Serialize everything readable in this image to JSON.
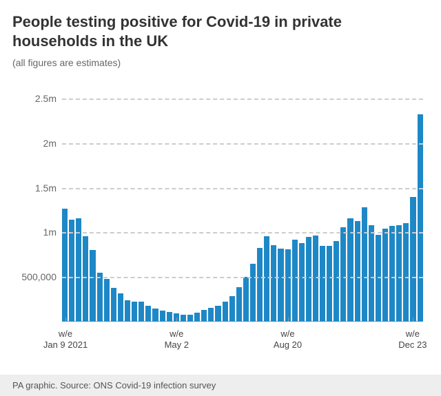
{
  "title": "People testing positive for Covid-19 in private households in the UK",
  "subtitle": "(all figures are estimates)",
  "footer": "PA graphic. Source: ONS Covid-19 infection survey",
  "chart": {
    "type": "bar",
    "y_max": 2700000,
    "y_min": 0,
    "y_ticks": [
      {
        "value": 500000,
        "label": "500,000"
      },
      {
        "value": 1000000,
        "label": "1m"
      },
      {
        "value": 1500000,
        "label": "1.5m"
      },
      {
        "value": 2000000,
        "label": "2m"
      },
      {
        "value": 2500000,
        "label": "2.5m"
      }
    ],
    "x_ticks": [
      {
        "index": 0,
        "line1": "w/e",
        "line2": "Jan 9 2021"
      },
      {
        "index": 16,
        "line1": "w/e",
        "line2": "May 2"
      },
      {
        "index": 32,
        "line1": "w/e",
        "line2": "Aug 20"
      },
      {
        "index": 50,
        "line1": "w/e",
        "line2": "Dec 23"
      }
    ],
    "bar_color": "#1e88c7",
    "grid_color": "#cccccc",
    "axis_color": "#999999",
    "text_color": "#666666",
    "background": "#ffffff",
    "title_fontsize": 22,
    "label_fontsize": 14,
    "values": [
      1265000,
      1140000,
      1155000,
      960000,
      805000,
      550000,
      480000,
      380000,
      320000,
      240000,
      225000,
      220000,
      175000,
      145000,
      125000,
      110000,
      90000,
      80000,
      80000,
      100000,
      130000,
      155000,
      175000,
      225000,
      285000,
      385000,
      500000,
      650000,
      825000,
      955000,
      855000,
      820000,
      810000,
      920000,
      880000,
      950000,
      965000,
      850000,
      850000,
      900000,
      1060000,
      1155000,
      1130000,
      1280000,
      1080000,
      970000,
      1040000,
      1070000,
      1080000,
      1100000,
      1400000,
      2320000
    ]
  }
}
